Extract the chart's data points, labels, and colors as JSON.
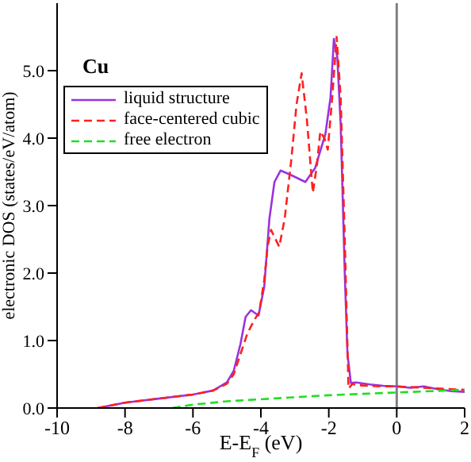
{
  "chart_data": {
    "type": "line",
    "xlabel": "E-E$_{F}$ (eV)",
    "ylabel": "electronic DOS (states/eV/atom)",
    "annotations": [
      "Cu"
    ],
    "xlim": [
      -10,
      2
    ],
    "xticks": [
      -10,
      -8,
      -6,
      -4,
      -2,
      0,
      2
    ],
    "ylim": [
      0,
      6
    ],
    "yticks": [
      {
        "value": 0,
        "label": "0.0"
      },
      {
        "value": 1,
        "label": "1.0"
      },
      {
        "value": 2,
        "label": "2.0"
      },
      {
        "value": 3,
        "label": "3.0"
      },
      {
        "value": 4,
        "label": "4.0"
      },
      {
        "value": 5,
        "label": "5.0"
      }
    ],
    "legend": "top left",
    "grid": false,
    "marker": "none",
    "ref_lines": [
      {
        "axis": "x",
        "value": 0,
        "color": "#808080"
      }
    ],
    "series": [
      {
        "name": "liquid structure",
        "color": "#9933dd",
        "line_style": "solid",
        "x": [
          -8.8,
          -8,
          -7,
          -6,
          -5.4,
          -5,
          -4.8,
          -4.6,
          -4.45,
          -4.29,
          -4.07,
          -3.9,
          -3.75,
          -3.6,
          -3.42,
          -3.1,
          -2.69,
          -2.4,
          -2.1,
          -1.95,
          -1.85,
          -1.75,
          -1.65,
          -1.53,
          -1.45,
          -1.35,
          -1.2,
          -0.8,
          -0.4,
          0,
          0.4,
          0.8,
          1.2,
          1.6,
          2
        ],
        "values": [
          0,
          0.08,
          0.14,
          0.2,
          0.26,
          0.38,
          0.55,
          0.95,
          1.35,
          1.45,
          1.37,
          1.8,
          2.8,
          3.35,
          3.52,
          3.45,
          3.35,
          3.56,
          4.06,
          4.6,
          5.47,
          5.2,
          4.2,
          2.0,
          0.8,
          0.37,
          0.38,
          0.35,
          0.33,
          0.32,
          0.3,
          0.32,
          0.28,
          0.25,
          0.24
        ]
      },
      {
        "name": "face-centered cubic",
        "color": "#ff2020",
        "line_style": "dashed",
        "x": [
          -8.8,
          -8,
          -7,
          -6,
          -5.4,
          -5,
          -4.8,
          -4.6,
          -4.4,
          -4.2,
          -4.05,
          -3.9,
          -3.8,
          -3.7,
          -3.46,
          -3.3,
          -3.1,
          -2.95,
          -2.8,
          -2.65,
          -2.47,
          -2.35,
          -2.25,
          -2.13,
          -2.03,
          -1.9,
          -1.77,
          -1.65,
          -1.53,
          -1.42,
          -1.3,
          -1.2,
          -0.8,
          -0.4,
          0,
          0.4,
          0.8,
          1.2,
          1.6,
          2
        ],
        "values": [
          0,
          0.08,
          0.14,
          0.2,
          0.26,
          0.36,
          0.5,
          0.8,
          1.1,
          1.3,
          1.42,
          1.9,
          2.4,
          2.64,
          2.39,
          2.8,
          3.7,
          4.5,
          4.96,
          4.3,
          3.19,
          3.6,
          4.1,
          4.0,
          3.83,
          4.6,
          5.5,
          4.6,
          2.5,
          0.29,
          0.36,
          0.34,
          0.33,
          0.32,
          0.32,
          0.31,
          0.3,
          0.29,
          0.28,
          0.27
        ]
      },
      {
        "name": "free electron",
        "color": "#22dd22",
        "line_style": "dashed",
        "x": [
          -6.6,
          -6,
          -5,
          -4,
          -3,
          -2,
          -1,
          0,
          1,
          2
        ],
        "values": [
          0,
          0.05,
          0.1,
          0.13,
          0.16,
          0.19,
          0.21,
          0.23,
          0.25,
          0.27
        ]
      }
    ]
  }
}
